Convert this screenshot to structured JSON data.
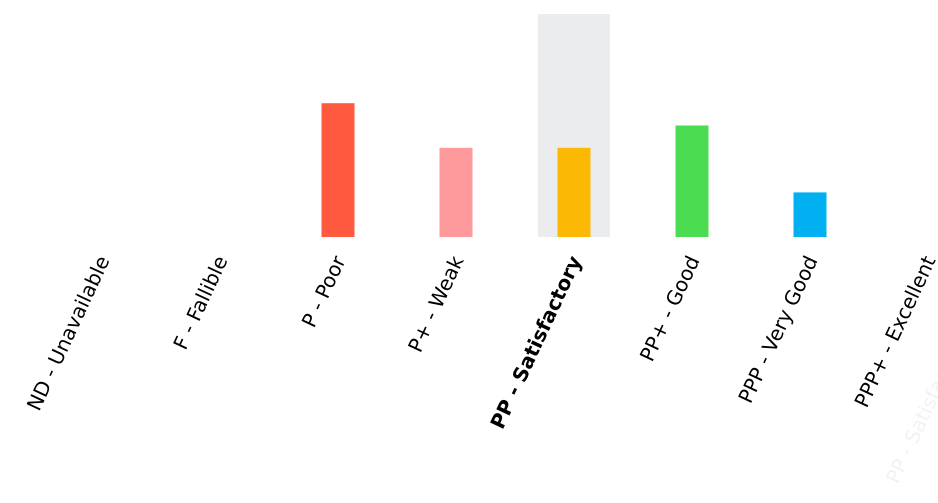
{
  "chart_data": {
    "type": "bar",
    "categories": [
      "ND - Unavailable",
      "F - Fallible",
      "P - Poor",
      "P+ - Weak",
      "PP - Satisfactory",
      "PP+ - Good",
      "PPP - Very Good",
      "PPP+ - Excellent"
    ],
    "values": [
      0,
      0,
      6,
      4,
      4,
      5,
      2,
      0
    ],
    "colors": [
      "#cccccc",
      "#cccccc",
      "#ff5a40",
      "#ff9a9c",
      "#fbb905",
      "#4cdc52",
      "#00b0f0",
      "#cccccc"
    ],
    "highlight_index": 4,
    "highlight_color": "#ebecee",
    "ylim": [
      0,
      10
    ],
    "grid": false,
    "legend": "none",
    "watermark": "PP - Satisfactory"
  }
}
